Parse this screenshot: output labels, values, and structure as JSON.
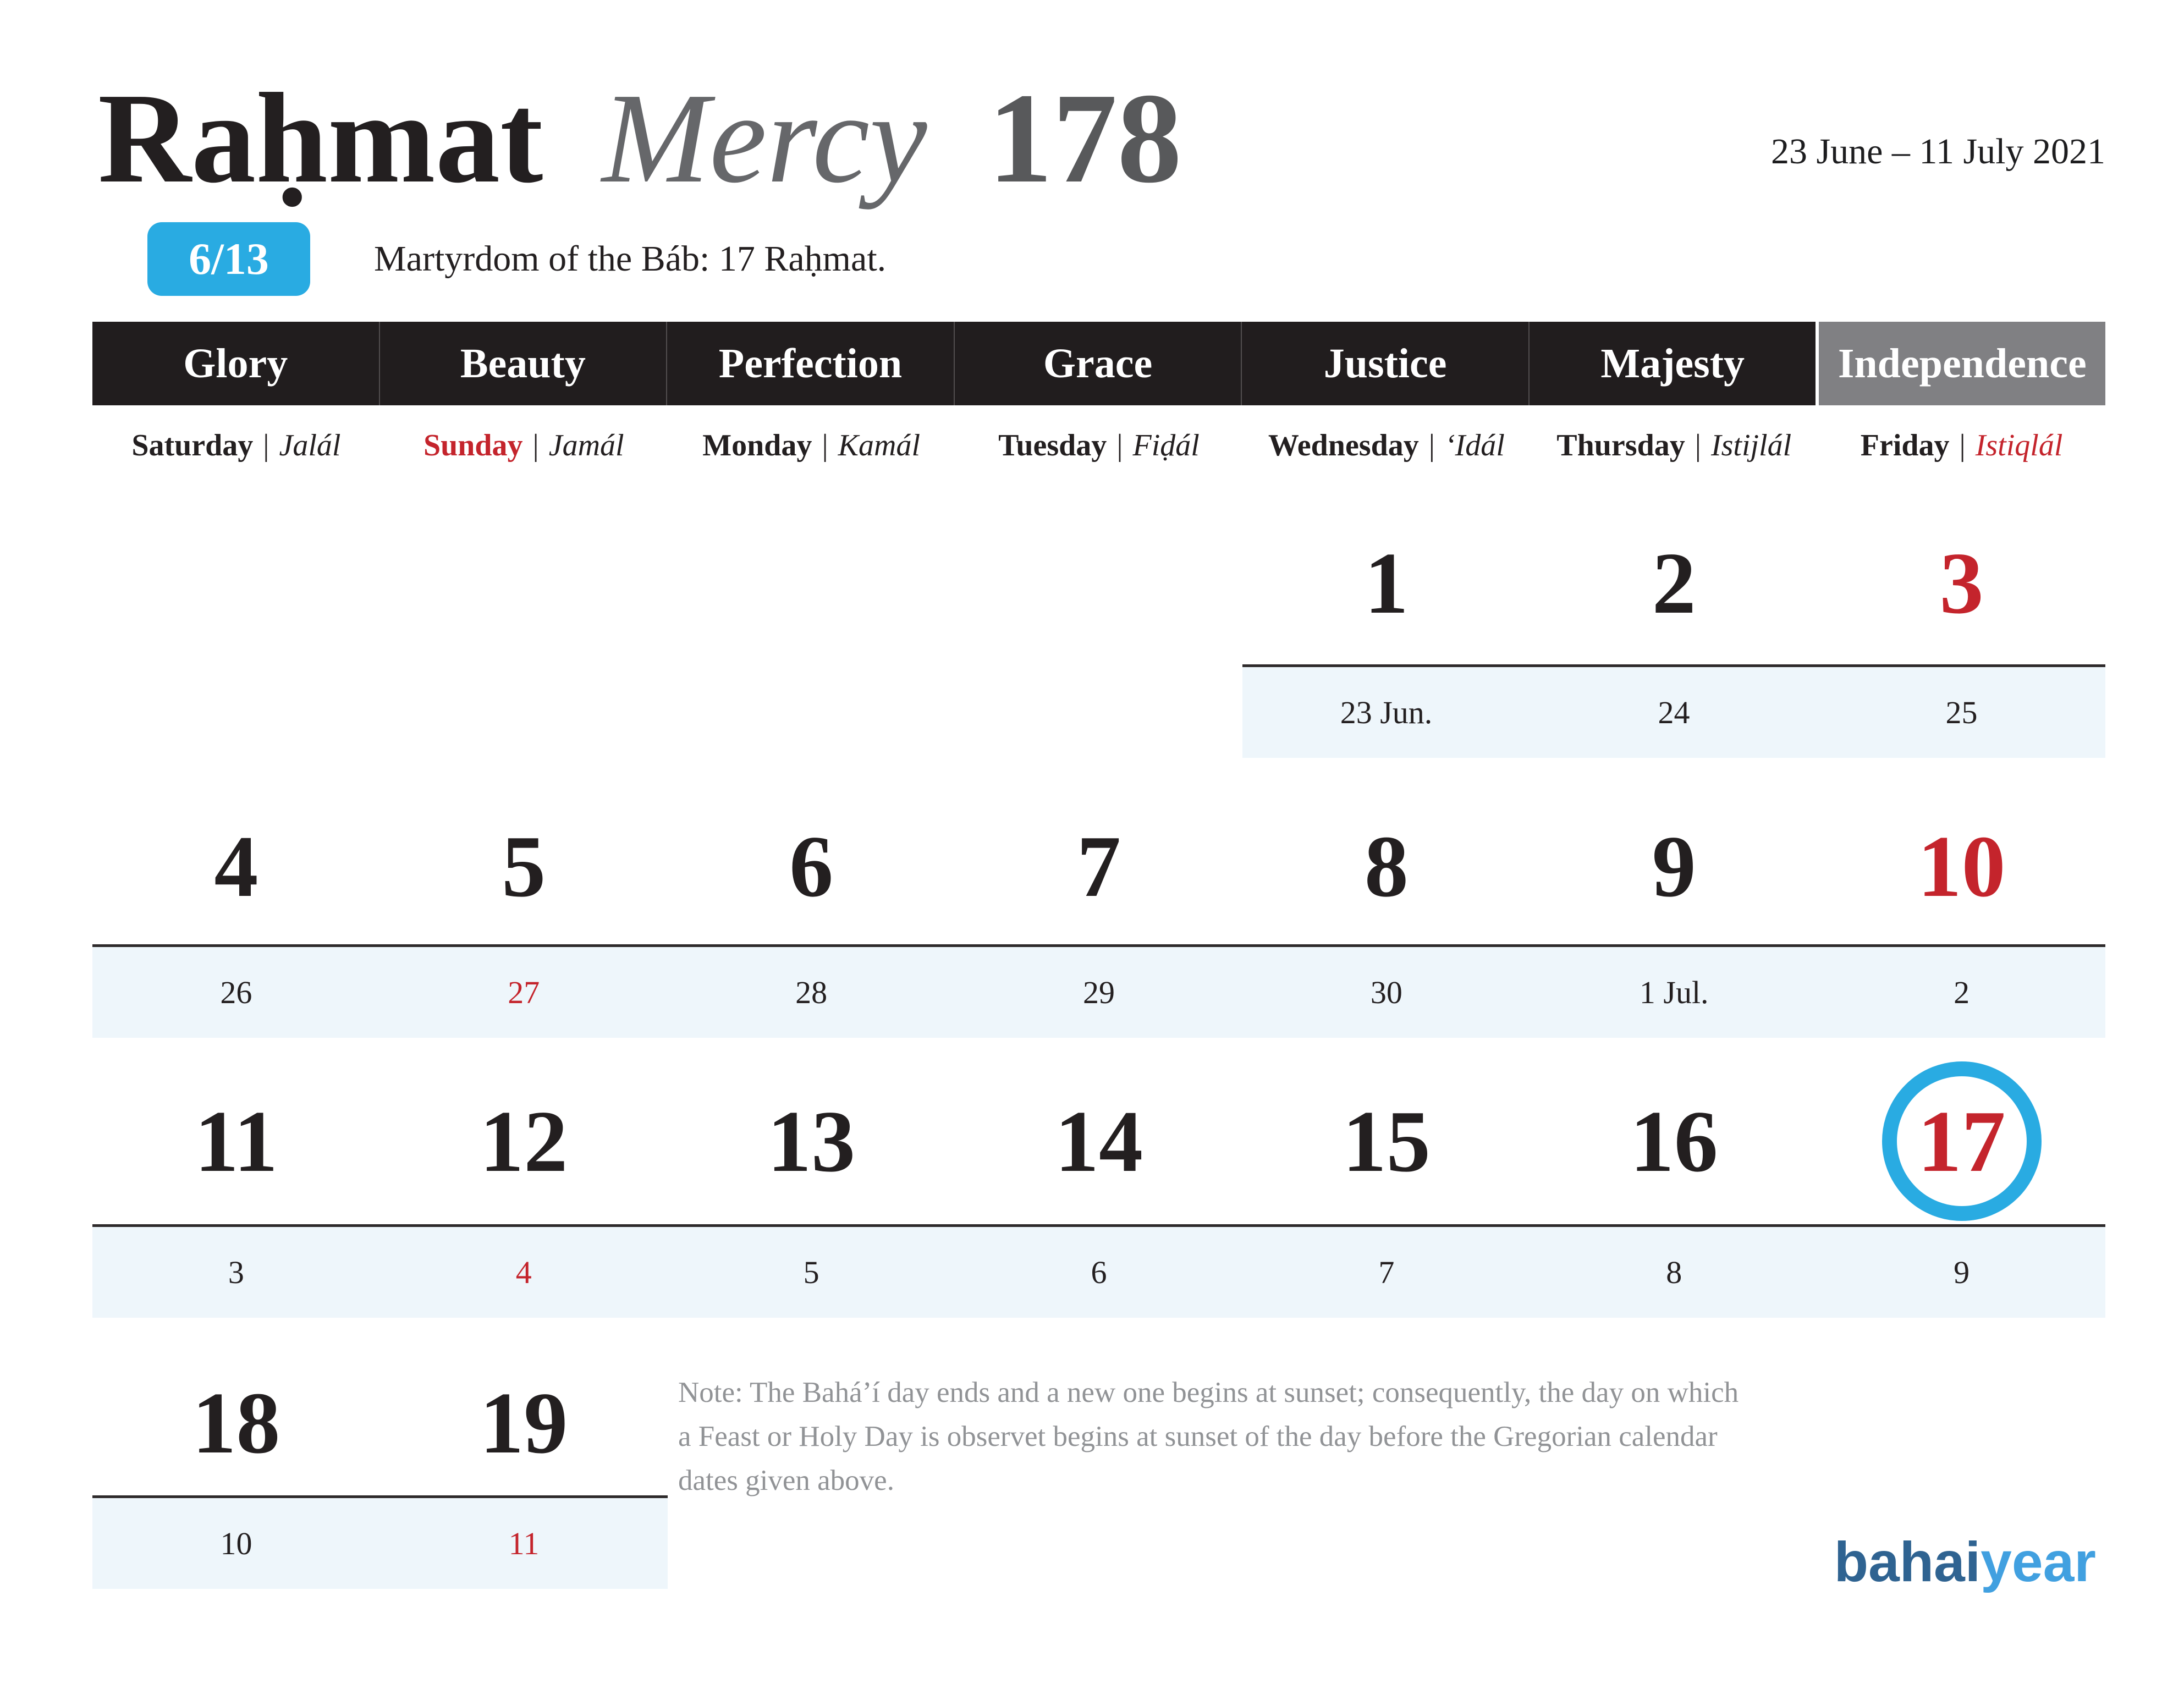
{
  "title": {
    "month": "Raḥmat",
    "translation": "Mercy",
    "year_be": "178"
  },
  "date_range": "23 June – 11 July 2021",
  "month_badge": "6/13",
  "holy_day_line": "Martyrdom of the Báb: 17 Raḥmat.",
  "attribute_headers": [
    "Glory",
    "Beauty",
    "Perfection",
    "Grace",
    "Justice",
    "Majesty",
    "Independence"
  ],
  "day_names": [
    {
      "en": "Saturday",
      "ba": "Jalál"
    },
    {
      "en": "Sunday",
      "ba": "Jamál"
    },
    {
      "en": "Monday",
      "ba": "Kamál"
    },
    {
      "en": "Tuesday",
      "ba": "Fiḍál"
    },
    {
      "en": "Wednesday",
      "ba": "‘Idál"
    },
    {
      "en": "Thursday",
      "ba": "Istijlál"
    },
    {
      "en": "Friday",
      "ba": "Istiqlál"
    }
  ],
  "separator": "|",
  "weeks": {
    "w1": {
      "d5": "1",
      "d6": "2",
      "d7": "3",
      "g5": "23 Jun.",
      "g6": "24",
      "g7": "25"
    },
    "w2": {
      "d1": "4",
      "d2": "5",
      "d3": "6",
      "d4": "7",
      "d5": "8",
      "d6": "9",
      "d7": "10",
      "g1": "26",
      "g2": "27",
      "g3": "28",
      "g4": "29",
      "g5": "30",
      "g6": "1 Jul.",
      "g7": "2"
    },
    "w3": {
      "d1": "11",
      "d2": "12",
      "d3": "13",
      "d4": "14",
      "d5": "15",
      "d6": "16",
      "d7": "17",
      "g1": "3",
      "g2": "4",
      "g3": "5",
      "g4": "6",
      "g5": "7",
      "g6": "8",
      "g7": "9"
    },
    "w4": {
      "d1": "18",
      "d2": "19",
      "g1": "10",
      "g2": "11"
    }
  },
  "highlighted_day": "17",
  "note": {
    "lines": [
      "Note: The Bahá’í day ends and a new one begins at sunset; consequently, the day on which",
      "a Feast or Holy Day is observet begins at sunset of the day before the Gregorian calendar",
      "dates given above."
    ]
  },
  "logo": {
    "primary": "bahai",
    "secondary": "year"
  },
  "colors": {
    "accent_blue": "#29abe2",
    "holy_red": "#c4242c",
    "bar_black": "#211d1e",
    "independence_gray": "#808083",
    "gregorian_strip_bg": "#eef6fb",
    "note_gray": "#919396",
    "logo_dark_blue": "#2f6391",
    "logo_light_blue": "#41a0e0"
  }
}
